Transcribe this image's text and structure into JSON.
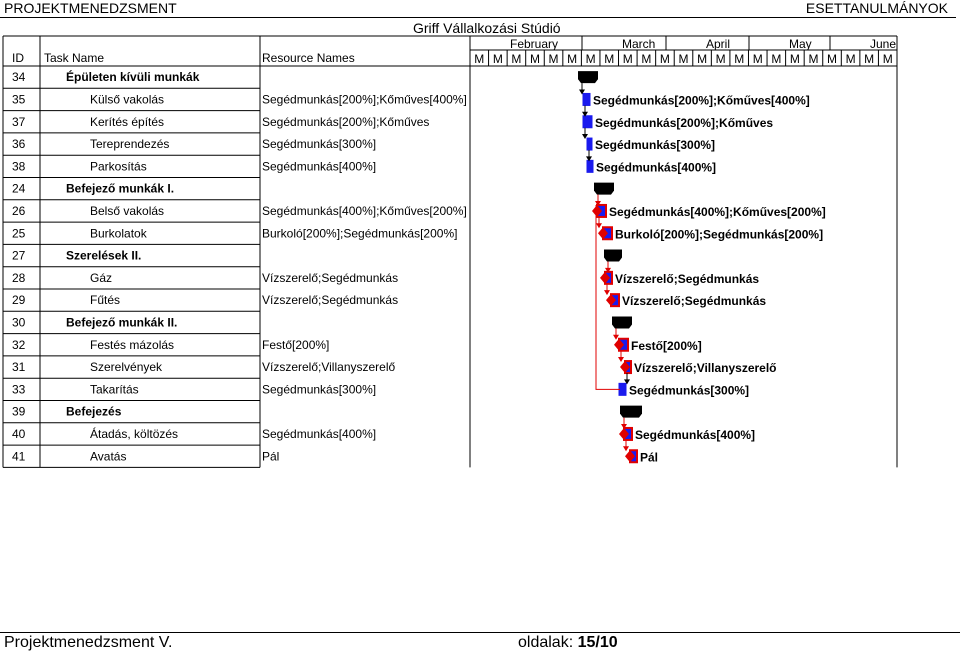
{
  "header": {
    "left_title": "PROJEKTMENEDZSMENT",
    "right_title": "ESETTANULMÁNYOK",
    "project_name": "Griff Vállalkozási Stúdió"
  },
  "columns": {
    "id": "ID",
    "task_name": "Task Name",
    "resource_names": "Resource Names"
  },
  "timeline": {
    "months": [
      "February",
      "March",
      "April",
      "May",
      "June"
    ],
    "week_label": "M",
    "week_count": 23
  },
  "tasks": [
    {
      "id": "34",
      "name": "Épületen kívüli munkák",
      "resources": "",
      "summary": true,
      "label": ""
    },
    {
      "id": "35",
      "name": "Külső vakolás",
      "resources": "Segédmunkás[200%];Kőműves[400%]",
      "summary": false,
      "label": "Segédmunkás[200%];Kőműves[400%]"
    },
    {
      "id": "37",
      "name": "Kerítés építés",
      "resources": "Segédmunkás[200%];Kőműves",
      "summary": false,
      "label": "Segédmunkás[200%];Kőműves"
    },
    {
      "id": "36",
      "name": "Tereprendezés",
      "resources": "Segédmunkás[300%]",
      "summary": false,
      "label": "Segédmunkás[300%]"
    },
    {
      "id": "38",
      "name": "Parkosítás",
      "resources": "Segédmunkás[400%]",
      "summary": false,
      "label": "Segédmunkás[400%]"
    },
    {
      "id": "24",
      "name": "Befejező munkák I.",
      "resources": "",
      "summary": true,
      "label": ""
    },
    {
      "id": "26",
      "name": "Belső vakolás",
      "resources": "Segédmunkás[400%];Kőműves[200%]",
      "summary": false,
      "label": "Segédmunkás[400%];Kőműves[200%]"
    },
    {
      "id": "25",
      "name": "Burkolatok",
      "resources": "Burkoló[200%];Segédmunkás[200%]",
      "summary": false,
      "label": "Burkoló[200%];Segédmunkás[200%]"
    },
    {
      "id": "27",
      "name": "Szerelések II.",
      "resources": "",
      "summary": true,
      "label": ""
    },
    {
      "id": "28",
      "name": "Gáz",
      "resources": "Vízszerelő;Segédmunkás",
      "summary": false,
      "label": "Vízszerelő;Segédmunkás"
    },
    {
      "id": "29",
      "name": "Fűtés",
      "resources": "Vízszerelő;Segédmunkás",
      "summary": false,
      "label": "Vízszerelő;Segédmunkás"
    },
    {
      "id": "30",
      "name": "Befejező munkák II.",
      "resources": "",
      "summary": true,
      "label": ""
    },
    {
      "id": "32",
      "name": "Festés mázolás",
      "resources": "Festő[200%]",
      "summary": false,
      "label": "Festő[200%]"
    },
    {
      "id": "31",
      "name": "Szerelvények",
      "resources": "Vízszerelő;Villanyszerelő",
      "summary": false,
      "label": "Vízszerelő;Villanyszerelő"
    },
    {
      "id": "33",
      "name": "Takarítás",
      "resources": "Segédmunkás[300%]",
      "summary": false,
      "label": "Segédmunkás[300%]"
    },
    {
      "id": "39",
      "name": "Befejezés",
      "resources": "",
      "summary": true,
      "label": ""
    },
    {
      "id": "40",
      "name": "Átadás, költözés",
      "resources": "Segédmunkás[400%]",
      "summary": false,
      "label": "Segédmunkás[400%]"
    },
    {
      "id": "41",
      "name": "Avatás",
      "resources": "Pál",
      "summary": false,
      "label": "Pál"
    }
  ],
  "footer": {
    "left": "Projektmenedzsment V.",
    "page_label": "oldalak:",
    "page_value": "15/10"
  },
  "colors": {
    "critical": "#e00000",
    "task_bar": "#1a1aee",
    "summary": "#000000"
  }
}
